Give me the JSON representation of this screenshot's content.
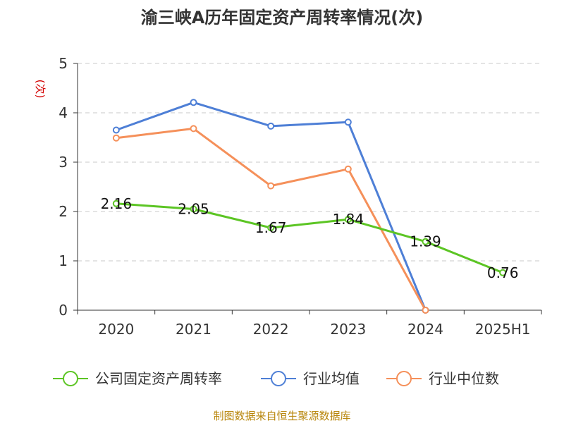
{
  "chart_data": {
    "type": "line",
    "title": "渝三峡A历年固定资产周转率情况(次)",
    "ylabel": "(次)",
    "xlabel": "",
    "categories": [
      "2020",
      "2021",
      "2022",
      "2023",
      "2024",
      "2025H1"
    ],
    "ylim": [
      0,
      5
    ],
    "yticks": [
      "0",
      "1",
      "2",
      "3",
      "4",
      "5"
    ],
    "grid": true,
    "legend_position": "bottom",
    "series": [
      {
        "name": "公司固定资产周转率",
        "color": "#5cc524",
        "values": [
          2.16,
          2.05,
          1.67,
          1.84,
          1.39,
          0.76
        ],
        "labels": [
          "2.16",
          "2.05",
          "1.67",
          "1.84",
          "1.39",
          "0.76"
        ]
      },
      {
        "name": "行业均值",
        "color": "#4e7fd6",
        "values": [
          3.65,
          4.21,
          3.73,
          3.81,
          0.0,
          null
        ]
      },
      {
        "name": "行业中位数",
        "color": "#f5905a",
        "values": [
          3.49,
          3.68,
          2.52,
          2.86,
          0.0,
          null
        ]
      }
    ]
  },
  "source": "制图数据来自恒生聚源数据库"
}
